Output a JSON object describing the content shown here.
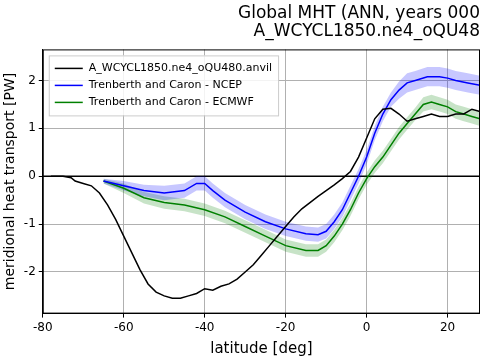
{
  "chart_data": {
    "type": "line",
    "title": [
      "Global MHT (ANN, years 000",
      "A_WCYCL1850.ne4_oQU48"
    ],
    "x_label": "latitude [deg]",
    "y_label": "meridional heat transport [PW]",
    "xlim": [
      -80,
      28
    ],
    "xticks": [
      -80,
      -60,
      -40,
      -20,
      0,
      20
    ],
    "ylim": [
      -2.87,
      2.65
    ],
    "yticks": [
      -2,
      -1,
      0,
      1,
      2
    ],
    "hlines": [
      0
    ],
    "grid": true,
    "legend": "upper left",
    "series": [
      {
        "name": "A_WCYCL1850.ne4_oQU480.anvil",
        "color": "#000000",
        "x": [
          -78,
          -75,
          -73,
          -72,
          -70,
          -68,
          -66,
          -64,
          -62,
          -60,
          -58,
          -56,
          -54,
          -52,
          -50,
          -48,
          -46,
          -44,
          -42,
          -40,
          -38,
          -36,
          -34,
          -32,
          -30,
          -28,
          -26,
          -24,
          -22,
          -20,
          -18,
          -16,
          -14,
          -12,
          -10,
          -8,
          -6,
          -4,
          -2,
          0,
          2,
          4,
          6,
          8,
          10,
          12,
          14,
          16,
          18,
          20,
          22,
          24,
          26,
          28
        ],
        "values": [
          0,
          0,
          -0.03,
          -0.1,
          -0.15,
          -0.2,
          -0.35,
          -0.6,
          -0.9,
          -1.25,
          -1.6,
          -1.95,
          -2.25,
          -2.42,
          -2.5,
          -2.55,
          -2.55,
          -2.5,
          -2.45,
          -2.35,
          -2.38,
          -2.3,
          -2.25,
          -2.15,
          -2.0,
          -1.85,
          -1.65,
          -1.45,
          -1.25,
          -1.05,
          -0.85,
          -0.68,
          -0.55,
          -0.42,
          -0.3,
          -0.18,
          -0.05,
          0.1,
          0.4,
          0.8,
          1.2,
          1.4,
          1.42,
          1.3,
          1.15,
          1.2,
          1.25,
          1.3,
          1.25,
          1.25,
          1.3,
          1.3,
          1.4,
          1.35
        ]
      },
      {
        "name": "Trenberth and Caron - NCEP",
        "color": "#0000ff",
        "x": [
          -65,
          -60,
          -55,
          -50,
          -45,
          -42,
          -40,
          -38,
          -35,
          -30,
          -25,
          -20,
          -15,
          -12,
          -10,
          -8,
          -6,
          -4,
          -2,
          0,
          2,
          4,
          6,
          8,
          10,
          12,
          15,
          18,
          20,
          22,
          25,
          28
        ],
        "values": [
          -0.1,
          -0.2,
          -0.3,
          -0.35,
          -0.3,
          -0.15,
          -0.15,
          -0.3,
          -0.5,
          -0.75,
          -0.95,
          -1.1,
          -1.2,
          -1.22,
          -1.15,
          -0.95,
          -0.7,
          -0.35,
          0.0,
          0.4,
          0.9,
          1.3,
          1.6,
          1.8,
          1.95,
          2.0,
          2.08,
          2.08,
          2.05,
          2.0,
          1.95,
          1.9
        ],
        "error": [
          0.05,
          0.1,
          0.12,
          0.15,
          0.15,
          0.15,
          0.15,
          0.15,
          0.15,
          0.15,
          0.15,
          0.15,
          0.15,
          0.15,
          0.15,
          0.15,
          0.15,
          0.15,
          0.15,
          0.15,
          0.15,
          0.15,
          0.15,
          0.18,
          0.2,
          0.2,
          0.2,
          0.2,
          0.2,
          0.2,
          0.2,
          0.2
        ]
      },
      {
        "name": "Trenberth and Caron - ECMWF",
        "color": "#008000",
        "x": [
          -65,
          -60,
          -55,
          -50,
          -45,
          -40,
          -35,
          -30,
          -25,
          -20,
          -15,
          -12,
          -10,
          -8,
          -6,
          -4,
          -2,
          0,
          2,
          4,
          6,
          8,
          10,
          12,
          14,
          16,
          18,
          20,
          22,
          24,
          26,
          28
        ],
        "values": [
          -0.1,
          -0.25,
          -0.45,
          -0.55,
          -0.6,
          -0.7,
          -0.85,
          -1.05,
          -1.25,
          -1.45,
          -1.55,
          -1.55,
          -1.45,
          -1.25,
          -1.0,
          -0.7,
          -0.35,
          -0.05,
          0.2,
          0.4,
          0.65,
          0.9,
          1.1,
          1.3,
          1.5,
          1.55,
          1.5,
          1.45,
          1.35,
          1.3,
          1.25,
          1.2
        ],
        "error": [
          0.05,
          0.1,
          0.12,
          0.13,
          0.13,
          0.13,
          0.13,
          0.13,
          0.13,
          0.13,
          0.13,
          0.13,
          0.13,
          0.13,
          0.13,
          0.13,
          0.13,
          0.13,
          0.13,
          0.13,
          0.13,
          0.13,
          0.13,
          0.13,
          0.15,
          0.15,
          0.15,
          0.15,
          0.15,
          0.15,
          0.15,
          0.15
        ]
      }
    ]
  }
}
